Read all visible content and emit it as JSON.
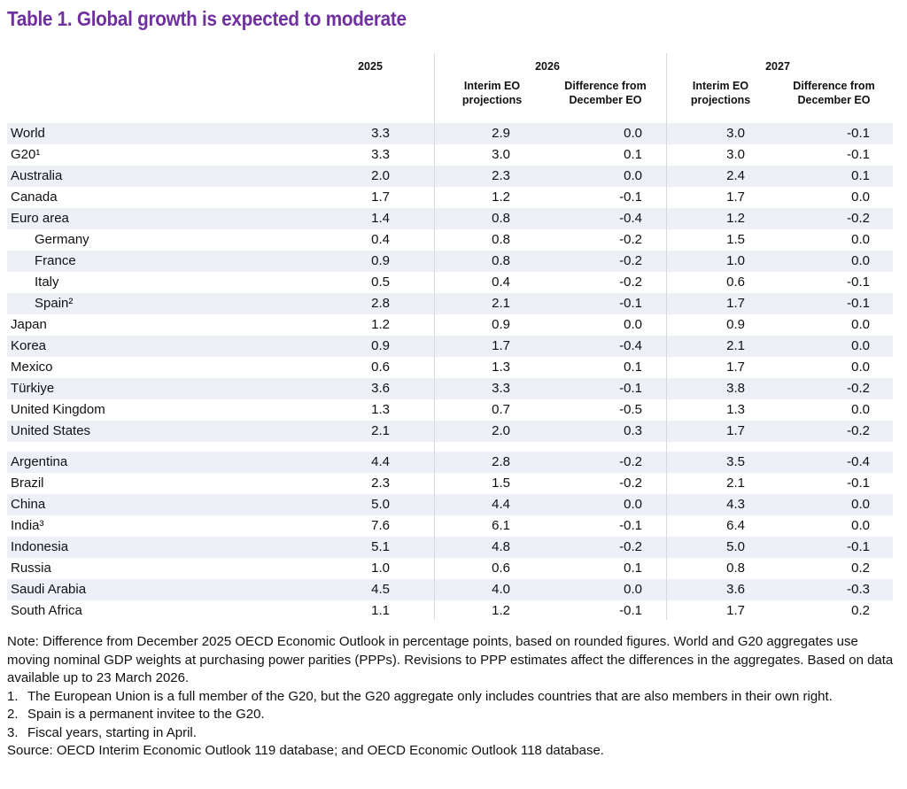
{
  "title": "Table  1. Global growth is expected to moderate",
  "header": {
    "y2025": "2025",
    "y2026": "2026",
    "y2027": "2027",
    "interim": "Interim EO projections",
    "difference": "Difference from December EO"
  },
  "rows": [
    {
      "label": "World",
      "indent": false,
      "v": [
        "3.3",
        "2.9",
        "0.0",
        "3.0",
        "-0.1"
      ]
    },
    {
      "label": "G20¹",
      "indent": false,
      "v": [
        "3.3",
        "3.0",
        "0.1",
        "3.0",
        "-0.1"
      ]
    },
    {
      "label": "Australia",
      "indent": false,
      "v": [
        "2.0",
        "2.3",
        "0.0",
        "2.4",
        "0.1"
      ]
    },
    {
      "label": "Canada",
      "indent": false,
      "v": [
        "1.7",
        "1.2",
        "-0.1",
        "1.7",
        "0.0"
      ]
    },
    {
      "label": "Euro area",
      "indent": false,
      "v": [
        "1.4",
        "0.8",
        "-0.4",
        "1.2",
        "-0.2"
      ]
    },
    {
      "label": "Germany",
      "indent": true,
      "v": [
        "0.4",
        "0.8",
        "-0.2",
        "1.5",
        "0.0"
      ]
    },
    {
      "label": "France",
      "indent": true,
      "v": [
        "0.9",
        "0.8",
        "-0.2",
        "1.0",
        "0.0"
      ]
    },
    {
      "label": "Italy",
      "indent": true,
      "v": [
        "0.5",
        "0.4",
        "-0.2",
        "0.6",
        "-0.1"
      ]
    },
    {
      "label": "Spain²",
      "indent": true,
      "v": [
        "2.8",
        "2.1",
        "-0.1",
        "1.7",
        "-0.1"
      ]
    },
    {
      "label": "Japan",
      "indent": false,
      "v": [
        "1.2",
        "0.9",
        "0.0",
        "0.9",
        "0.0"
      ]
    },
    {
      "label": "Korea",
      "indent": false,
      "v": [
        "0.9",
        "1.7",
        "-0.4",
        "2.1",
        "0.0"
      ]
    },
    {
      "label": "Mexico",
      "indent": false,
      "v": [
        "0.6",
        "1.3",
        "0.1",
        "1.7",
        "0.0"
      ]
    },
    {
      "label": "Türkiye",
      "indent": false,
      "v": [
        "3.6",
        "3.3",
        "-0.1",
        "3.8",
        "-0.2"
      ]
    },
    {
      "label": "United Kingdom",
      "indent": false,
      "v": [
        "1.3",
        "0.7",
        "-0.5",
        "1.3",
        "0.0"
      ]
    },
    {
      "label": "United States",
      "indent": false,
      "v": [
        "2.1",
        "2.0",
        "0.3",
        "1.7",
        "-0.2"
      ]
    },
    {
      "label": "Argentina",
      "indent": false,
      "v": [
        "4.4",
        "2.8",
        "-0.2",
        "3.5",
        "-0.4"
      ]
    },
    {
      "label": "Brazil",
      "indent": false,
      "v": [
        "2.3",
        "1.5",
        "-0.2",
        "2.1",
        "-0.1"
      ]
    },
    {
      "label": "China",
      "indent": false,
      "v": [
        "5.0",
        "4.4",
        "0.0",
        "4.3",
        "0.0"
      ]
    },
    {
      "label": "India³",
      "indent": false,
      "v": [
        "7.6",
        "6.1",
        "-0.1",
        "6.4",
        "0.0"
      ]
    },
    {
      "label": "Indonesia",
      "indent": false,
      "v": [
        "5.1",
        "4.8",
        "-0.2",
        "5.0",
        "-0.1"
      ]
    },
    {
      "label": "Russia",
      "indent": false,
      "v": [
        "1.0",
        "0.6",
        "0.1",
        "0.8",
        "0.2"
      ]
    },
    {
      "label": "Saudi Arabia",
      "indent": false,
      "v": [
        "4.5",
        "4.0",
        "0.0",
        "3.6",
        "-0.3"
      ]
    },
    {
      "label": "South Africa",
      "indent": false,
      "v": [
        "1.1",
        "1.2",
        "-0.1",
        "1.7",
        "0.2"
      ]
    }
  ],
  "notes": {
    "main": "Note: Difference from December 2025 OECD Economic Outlook in percentage points, based on rounded figures. World and G20 aggregates use moving nominal GDP weights at purchasing power parities (PPPs). Revisions to PPP estimates affect the differences in the aggregates. Based on data available up to 23 March 2026.",
    "footnotes": [
      {
        "n": "1.",
        "text": "The European Union is a full member of the G20, but the G20 aggregate only includes countries that are also members in their own right."
      },
      {
        "n": "2.",
        "text": "Spain is a permanent invitee to the G20."
      },
      {
        "n": "3.",
        "text": "Fiscal years, starting in April."
      }
    ],
    "source": "Source: OECD Interim Economic Outlook 119 database; and OECD Economic Outlook 118 database."
  }
}
